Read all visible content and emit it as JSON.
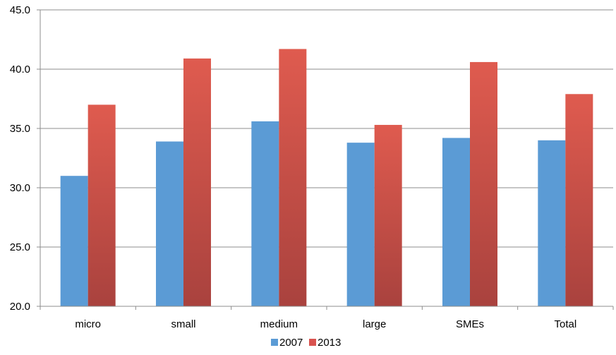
{
  "chart_data": {
    "type": "bar",
    "title": "",
    "xlabel": "",
    "ylabel": "",
    "categories": [
      "micro",
      "small",
      "medium",
      "large",
      "SMEs",
      "Total"
    ],
    "series": [
      {
        "name": "2007",
        "values": [
          31.0,
          33.9,
          35.6,
          33.8,
          34.2,
          34.0
        ],
        "color": "#5b9bd5"
      },
      {
        "name": "2013",
        "values": [
          37.0,
          40.9,
          41.7,
          35.3,
          40.6,
          37.9
        ],
        "color": "#d9534f"
      }
    ],
    "ylim": [
      20.0,
      45.0
    ],
    "yticks": [
      "20.0",
      "25.0",
      "30.0",
      "35.0",
      "40.0",
      "45.0"
    ],
    "grid": true,
    "legend_position": "bottom"
  }
}
